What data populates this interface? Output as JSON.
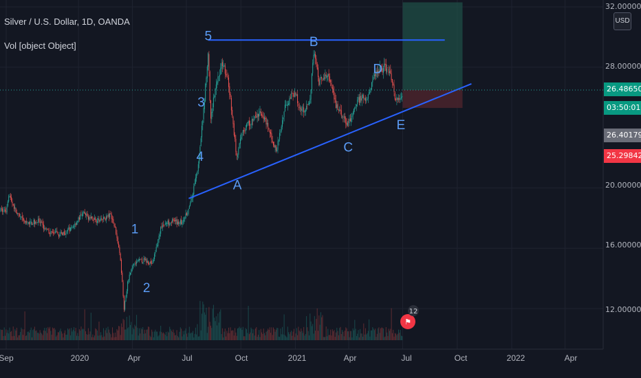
{
  "header": {
    "symbol_title": "Silver / U.S. Dollar, 1D, OANDA",
    "volume_label": "Vol [object Object]",
    "currency_button": "USD"
  },
  "axis": {
    "y_labels": [
      "32.00000",
      "28.00000",
      "20.00000",
      "16.00000",
      "12.00000"
    ],
    "x_labels": [
      "Sep",
      "2020",
      "Apr",
      "Jul",
      "Oct",
      "2021",
      "Apr",
      "Jul",
      "Oct",
      "2022",
      "Apr"
    ]
  },
  "badges": {
    "last_price": "26.48650",
    "countdown": "03:50:01",
    "grey_price": "26.40179",
    "red_price": "25.29842"
  },
  "event_count": "12",
  "colors": {
    "background": "#131722",
    "trendline": "#2962ff",
    "wave_label": "#5b9cf6",
    "candle_up": "#26a69a",
    "candle_down": "#ef5350",
    "target_zone": "#1f4d46",
    "stop_zone": "#4a232b",
    "red_badge": "#f23645",
    "green_badge": "#089981",
    "grey_badge": "#6a6d78"
  },
  "chart_data": {
    "type": "line",
    "title": "Silver / U.S. Dollar, 1D, OANDA",
    "xlabel": "",
    "ylabel": "",
    "y_ticks": [
      12,
      16,
      20,
      28,
      32
    ],
    "ylim": [
      9.8,
      32.2
    ],
    "grid": true,
    "wave_labels": [
      {
        "label": "1",
        "date": "2020-04-05",
        "price": 17.0
      },
      {
        "label": "2",
        "date": "2020-04-25",
        "price": 13.1
      },
      {
        "label": "4",
        "date": "2020-07-24",
        "price": 21.8
      },
      {
        "label": "3",
        "date": "2020-07-26",
        "price": 25.4
      },
      {
        "label": "5",
        "date": "2020-08-07",
        "price": 29.8
      },
      {
        "label": "A",
        "date": "2020-09-25",
        "price": 19.9
      },
      {
        "label": "B",
        "date": "2021-02-01",
        "price": 29.4
      },
      {
        "label": "C",
        "date": "2021-03-31",
        "price": 22.4
      },
      {
        "label": "D",
        "date": "2021-05-20",
        "price": 27.6
      },
      {
        "label": "E",
        "date": "2021-06-28",
        "price": 23.9
      }
    ],
    "trendlines": [
      {
        "points": [
          [
            "2020-08-07",
            29.8
          ],
          [
            "2021-09-10",
            29.8
          ]
        ]
      },
      {
        "points": [
          [
            "2020-07-05",
            19.3
          ],
          [
            "2021-10-25",
            26.9
          ]
        ]
      }
    ],
    "position_box": {
      "entry": 26.49,
      "target": 32.3,
      "stop": 25.3,
      "start": "2021-07-01",
      "end": "2021-10-10"
    },
    "price_series": [
      [
        "2019-09-01",
        18.5
      ],
      [
        "2019-09-05",
        19.6
      ],
      [
        "2019-09-20",
        18.2
      ],
      [
        "2019-10-05",
        17.6
      ],
      [
        "2019-10-25",
        17.8
      ],
      [
        "2019-11-10",
        17.1
      ],
      [
        "2019-11-30",
        16.9
      ],
      [
        "2019-12-20",
        17.3
      ],
      [
        "2020-01-08",
        18.3
      ],
      [
        "2020-01-20",
        18.0
      ],
      [
        "2020-02-05",
        17.8
      ],
      [
        "2020-02-25",
        18.2
      ],
      [
        "2020-03-05",
        17.0
      ],
      [
        "2020-03-12",
        15.2
      ],
      [
        "2020-03-18",
        12.0
      ],
      [
        "2020-03-25",
        14.0
      ],
      [
        "2020-04-05",
        15.1
      ],
      [
        "2020-04-20",
        15.2
      ],
      [
        "2020-05-05",
        15.0
      ],
      [
        "2020-05-20",
        17.5
      ],
      [
        "2020-06-05",
        17.8
      ],
      [
        "2020-06-25",
        17.7
      ],
      [
        "2020-07-08",
        18.9
      ],
      [
        "2020-07-21",
        21.5
      ],
      [
        "2020-07-28",
        24.3
      ],
      [
        "2020-08-07",
        29.0
      ],
      [
        "2020-08-11",
        24.5
      ],
      [
        "2020-08-20",
        27.0
      ],
      [
        "2020-09-01",
        28.3
      ],
      [
        "2020-09-10",
        27.0
      ],
      [
        "2020-09-24",
        22.0
      ],
      [
        "2020-10-05",
        23.9
      ],
      [
        "2020-10-20",
        24.5
      ],
      [
        "2020-11-05",
        25.0
      ],
      [
        "2020-11-20",
        23.5
      ],
      [
        "2020-11-30",
        22.4
      ],
      [
        "2020-12-15",
        25.5
      ],
      [
        "2020-12-31",
        26.4
      ],
      [
        "2021-01-10",
        25.0
      ],
      [
        "2021-01-25",
        25.5
      ],
      [
        "2021-02-01",
        29.2
      ],
      [
        "2021-02-10",
        27.0
      ],
      [
        "2021-02-25",
        27.5
      ],
      [
        "2021-03-10",
        25.5
      ],
      [
        "2021-03-31",
        24.1
      ],
      [
        "2021-04-15",
        25.8
      ],
      [
        "2021-05-01",
        26.0
      ],
      [
        "2021-05-18",
        27.8
      ],
      [
        "2021-06-01",
        28.0
      ],
      [
        "2021-06-10",
        27.8
      ],
      [
        "2021-06-18",
        26.0
      ],
      [
        "2021-06-25",
        25.7
      ],
      [
        "2021-07-01",
        26.4
      ]
    ]
  }
}
